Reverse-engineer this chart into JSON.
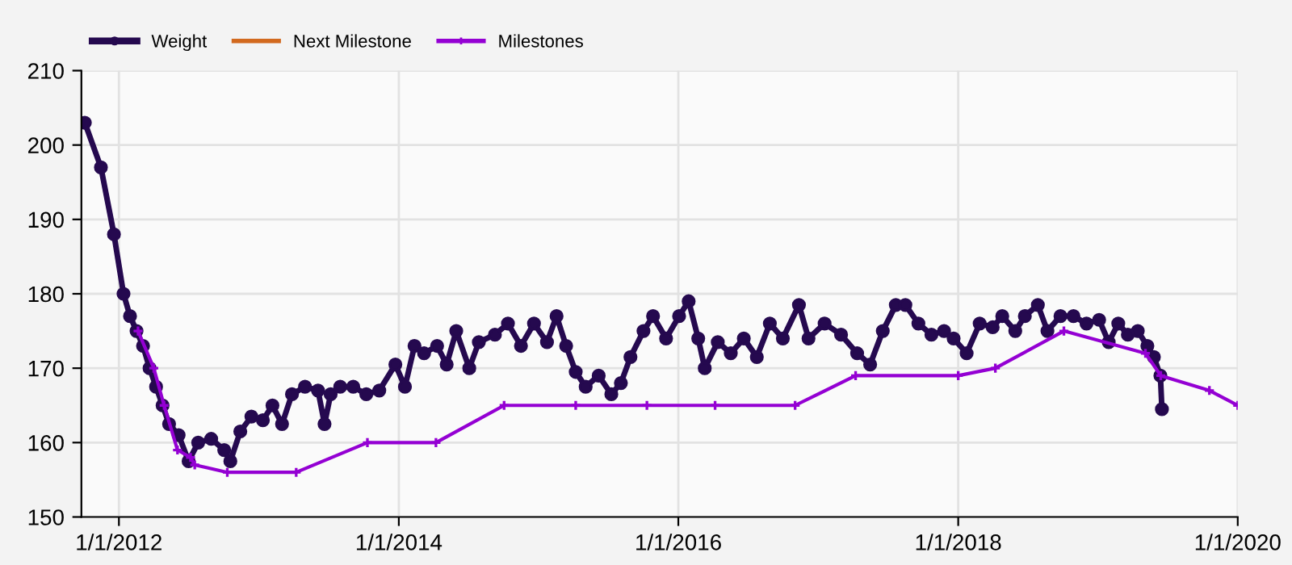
{
  "chart_data": {
    "type": "line",
    "xlim": [
      "2011-09-25",
      "2020-01-01"
    ],
    "xticks": [
      {
        "value": "2012-01-01",
        "label": "1/1/2012"
      },
      {
        "value": "2014-01-01",
        "label": "1/1/2014"
      },
      {
        "value": "2016-01-01",
        "label": "1/1/2016"
      },
      {
        "value": "2018-01-01",
        "label": "1/1/2018"
      },
      {
        "value": "2020-01-01",
        "label": "1/1/2020"
      }
    ],
    "ylim": [
      150,
      210
    ],
    "yticks": [
      150,
      160,
      170,
      180,
      190,
      200,
      210
    ],
    "grid": true,
    "legend": "top left",
    "series": [
      {
        "name": "Weight",
        "color": "#25094f",
        "marker": "circle",
        "x": [
          "2011-10-04",
          "2011-11-15",
          "2011-12-19",
          "2012-01-13",
          "2012-01-30",
          "2012-02-16",
          "2012-03-04",
          "2012-03-21",
          "2012-04-07",
          "2012-04-24",
          "2012-05-11",
          "2012-06-05",
          "2012-07-01",
          "2012-07-26",
          "2012-08-29",
          "2012-10-02",
          "2012-10-18",
          "2012-11-13",
          "2012-12-12",
          "2013-01-11",
          "2013-02-05",
          "2013-03-02",
          "2013-03-28",
          "2013-05-01",
          "2013-06-04",
          "2013-06-21",
          "2013-07-07",
          "2013-08-01",
          "2013-09-04",
          "2013-10-08",
          "2013-11-11",
          "2013-12-23",
          "2014-01-17",
          "2014-02-11",
          "2014-03-08",
          "2014-04-11",
          "2014-05-06",
          "2014-05-31",
          "2014-07-04",
          "2014-07-29",
          "2014-09-09",
          "2014-10-13",
          "2014-11-16",
          "2014-12-20",
          "2015-01-23",
          "2015-02-17",
          "2015-03-14",
          "2015-04-08",
          "2015-05-04",
          "2015-06-07",
          "2015-07-10",
          "2015-08-04",
          "2015-08-29",
          "2015-10-02",
          "2015-10-27",
          "2015-11-30",
          "2016-01-03",
          "2016-01-28",
          "2016-02-22",
          "2016-03-10",
          "2016-04-13",
          "2016-05-17",
          "2016-06-20",
          "2016-07-24",
          "2016-08-27",
          "2016-09-30",
          "2016-11-11",
          "2016-12-06",
          "2017-01-17",
          "2017-03-01",
          "2017-04-12",
          "2017-05-16",
          "2017-06-18",
          "2017-07-22",
          "2017-08-16",
          "2017-09-19",
          "2017-10-23",
          "2017-11-25",
          "2017-12-20",
          "2018-01-23",
          "2018-02-26",
          "2018-04-01",
          "2018-04-26",
          "2018-05-30",
          "2018-06-24",
          "2018-07-28",
          "2018-08-22",
          "2018-09-25",
          "2018-10-29",
          "2018-12-02",
          "2019-01-04",
          "2019-01-29",
          "2019-02-23",
          "2019-03-20",
          "2019-04-15",
          "2019-05-10",
          "2019-05-27",
          "2019-06-13",
          "2019-06-17"
        ],
        "values": [
          203,
          197,
          188,
          180,
          177,
          175,
          173,
          170,
          167.5,
          165,
          162.5,
          161,
          157.5,
          160,
          160.5,
          159,
          157.5,
          161.5,
          163.5,
          163,
          165,
          162.5,
          166.5,
          167.5,
          167,
          162.5,
          166.5,
          167.5,
          167.5,
          166.5,
          167,
          170.5,
          167.5,
          173,
          172,
          173,
          170.5,
          175,
          170,
          173.5,
          174.5,
          176,
          173,
          176,
          173.5,
          177,
          173,
          169.5,
          167.5,
          169,
          166.5,
          168,
          171.5,
          175,
          177,
          174,
          177,
          179,
          174,
          170,
          173.5,
          172,
          174,
          171.5,
          176,
          174,
          178.5,
          174,
          176,
          174.5,
          172,
          170.5,
          175,
          178.5,
          178.5,
          176,
          174.5,
          175,
          174,
          172,
          176,
          175.5,
          177,
          175,
          177,
          178.5,
          175,
          177,
          177,
          176,
          176.5,
          173.5,
          176,
          174.5,
          175,
          173,
          171.5,
          169,
          164.5
        ]
      },
      {
        "name": "Next Milestone",
        "color": "#d2691e",
        "marker": "none"
      },
      {
        "name": "Milestones",
        "color": "#9400d3",
        "marker": "cross",
        "x": [
          "2012-02-20",
          "2012-04-01",
          "2012-04-28",
          "2012-06-02",
          "2012-07-06",
          "2012-07-17",
          "2012-10-10",
          "2013-04-08",
          "2013-10-11",
          "2014-04-08",
          "2014-10-03",
          "2015-04-08",
          "2015-10-11",
          "2016-04-06",
          "2016-11-01",
          "2017-04-08",
          "2018-01-01",
          "2018-04-08",
          "2018-10-04",
          "2019-05-05",
          "2019-06-14",
          "2019-10-19",
          "2020-01-01"
        ],
        "values": [
          175,
          170,
          165,
          159,
          158,
          157,
          156,
          156,
          160,
          160,
          165,
          165,
          165,
          165,
          165,
          169,
          169,
          170,
          175,
          172,
          169,
          167,
          165
        ]
      }
    ]
  }
}
